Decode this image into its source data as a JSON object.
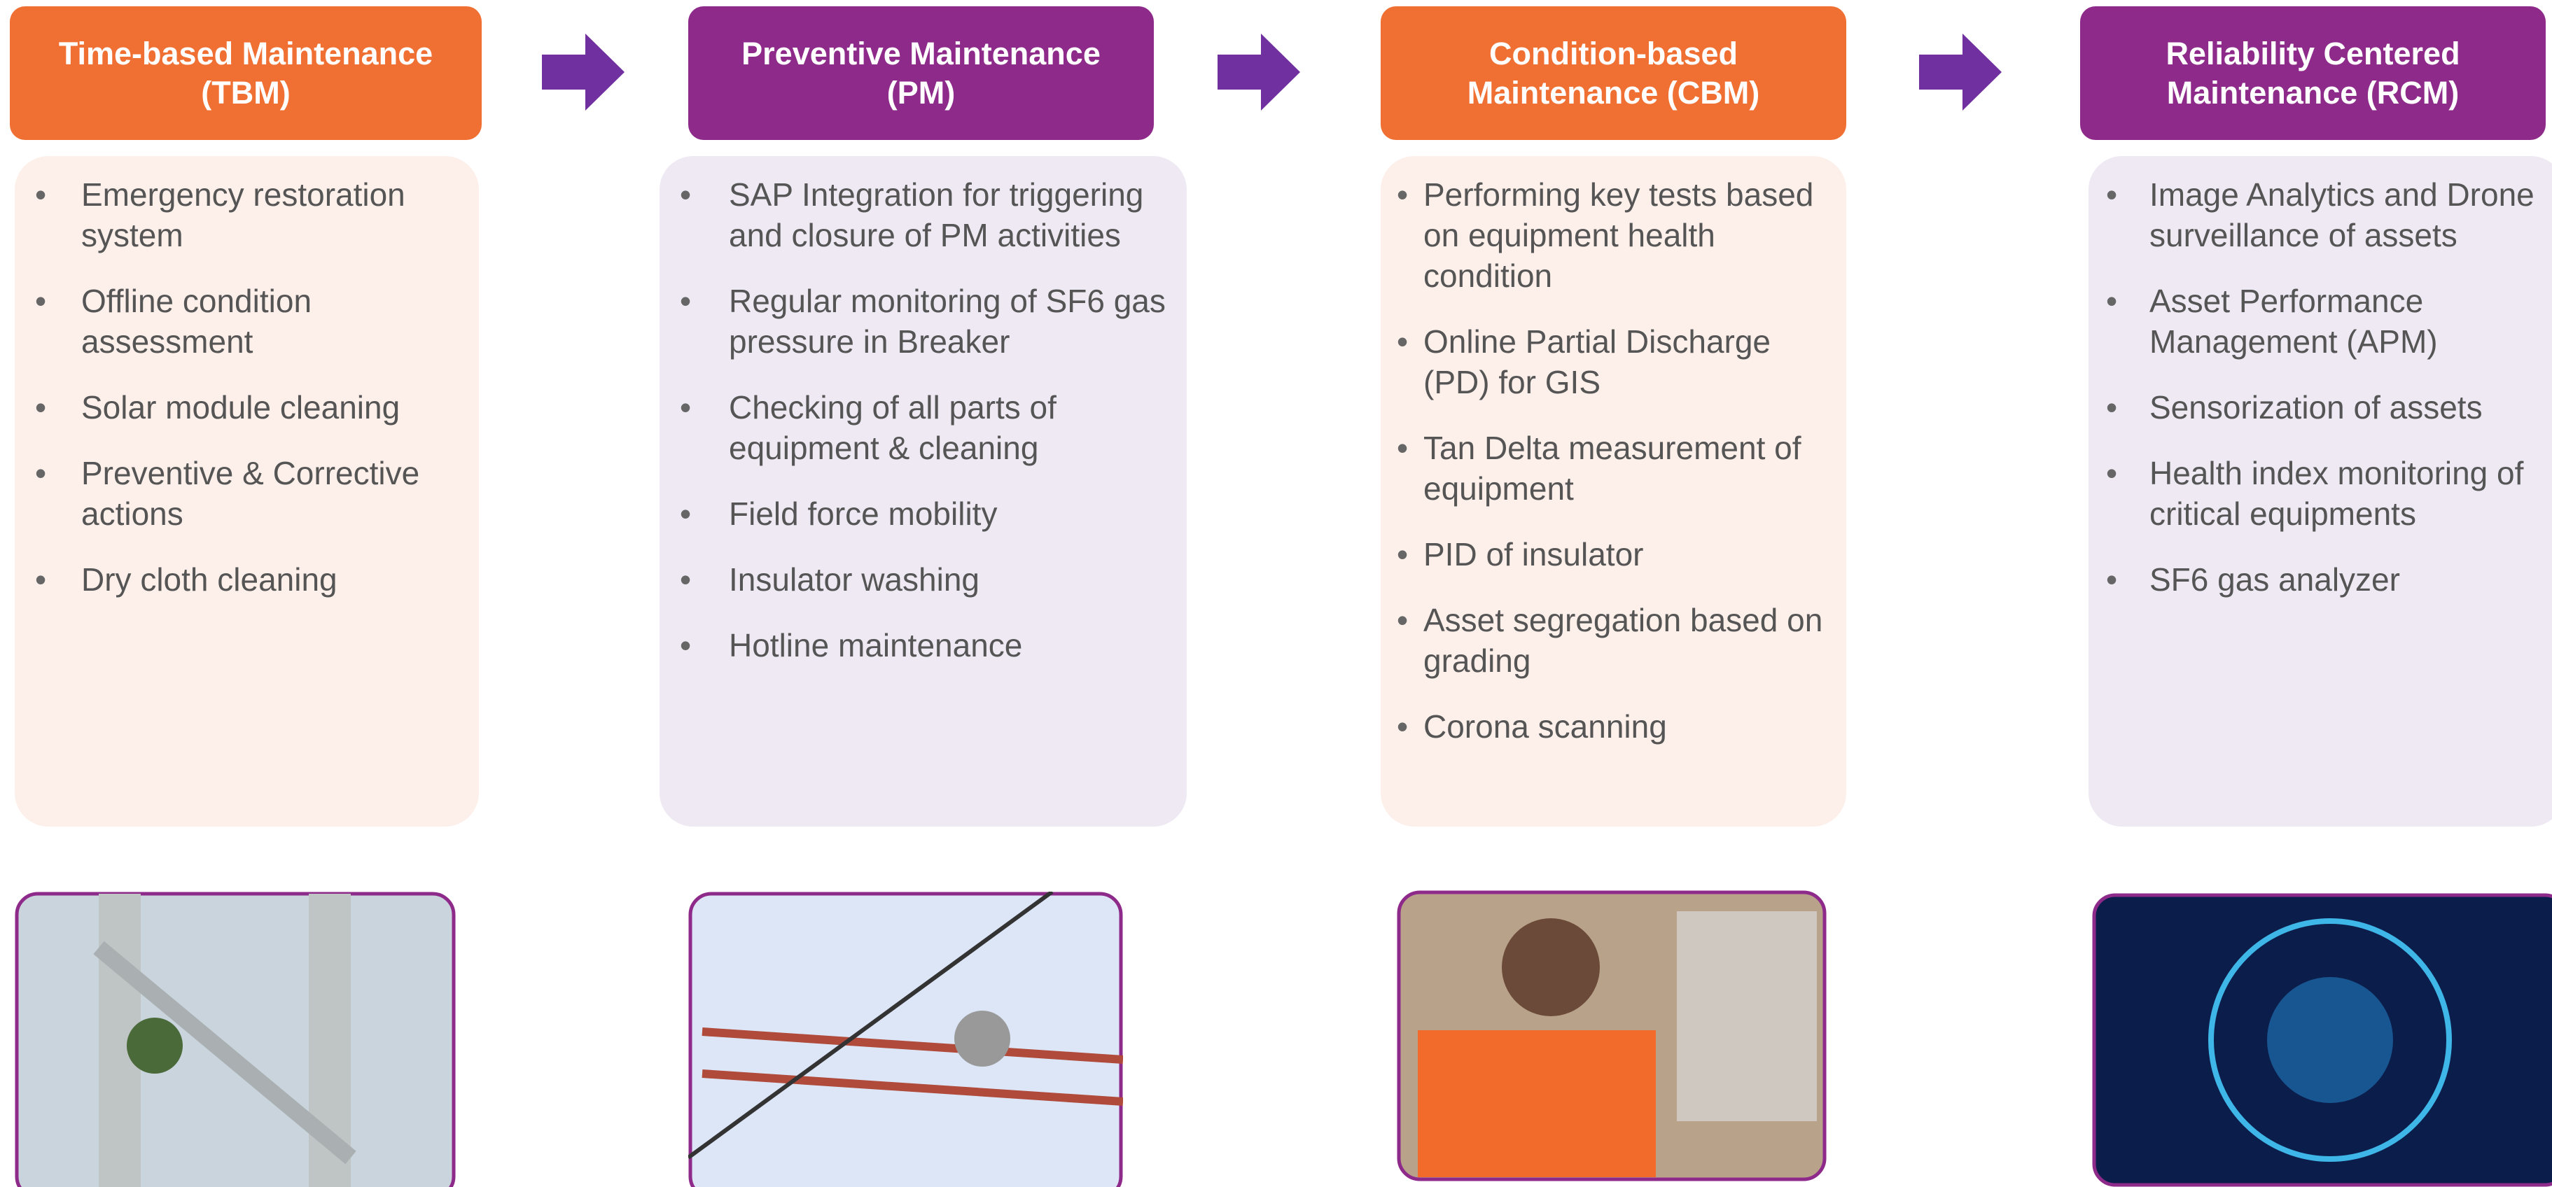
{
  "columns": [
    {
      "title_lines": [
        "Time-based Maintenance",
        "(TBM)"
      ],
      "items": [
        "Emergency restoration system",
        "Offline condition assessment",
        "Solar module cleaning",
        "Preventive & Corrective actions",
        "Dry cloth cleaning"
      ]
    },
    {
      "title_lines": [
        "Preventive Maintenance",
        "(PM)"
      ],
      "items": [
        "SAP Integration for triggering and closure of PM activities",
        "Regular monitoring of SF6 gas pressure in Breaker",
        "Checking of all parts of equipment & cleaning",
        "Field force mobility",
        "Insulator washing",
        "Hotline maintenance"
      ]
    },
    {
      "title_lines": [
        "Condition-based",
        "Maintenance (CBM)"
      ],
      "items": [
        "Performing key tests based on equipment health condition",
        "Online Partial Discharge (PD) for GIS",
        "Tan Delta measurement of equipment",
        "PID of insulator",
        "Asset segregation based on grading",
        "Corona scanning"
      ]
    },
    {
      "title_lines": [
        "Reliability Centered",
        "Maintenance (RCM)"
      ],
      "items": [
        "Image Analytics and Drone surveillance of assets",
        "Asset Performance Management (APM)",
        "Sensorization of assets",
        "Health index monitoring of critical equipments",
        "SF6 gas analyzer"
      ]
    }
  ]
}
